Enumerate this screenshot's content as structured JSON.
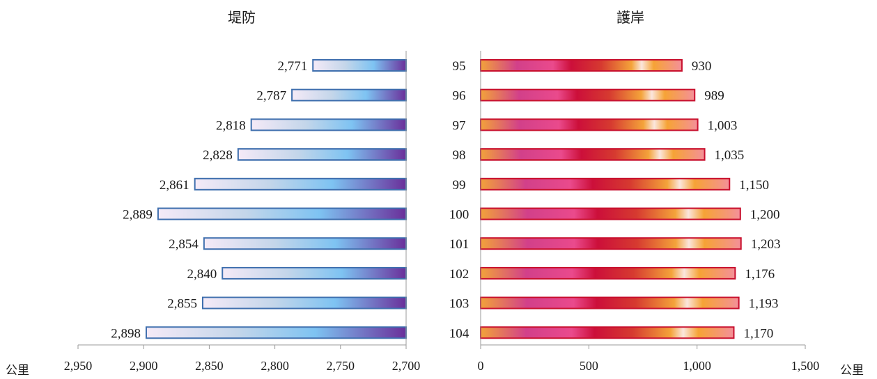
{
  "chart_data": [
    {
      "type": "bar",
      "orientation": "horizontal",
      "axis_direction": "reversed",
      "title": "堤防",
      "unit": "公里",
      "categories": [
        "95",
        "96",
        "97",
        "98",
        "99",
        "100",
        "101",
        "102",
        "103",
        "104"
      ],
      "values": [
        2771,
        2787,
        2818,
        2828,
        2861,
        2889,
        2854,
        2840,
        2855,
        2898
      ],
      "value_labels": [
        "2,771",
        "2,787",
        "2,818",
        "2,828",
        "2,861",
        "2,889",
        "2,854",
        "2,840",
        "2,855",
        "2,898"
      ],
      "xlim": [
        2700,
        2950
      ],
      "ticks": [
        2950,
        2900,
        2850,
        2800,
        2750,
        2700
      ],
      "tick_labels": [
        "2,950",
        "2,900",
        "2,850",
        "2,800",
        "2,750",
        "2,700"
      ],
      "grid": false,
      "colors": {
        "fill_start": "#f5eaf7",
        "fill_mid": "#7ec3f2",
        "fill_end": "#6a2f9a",
        "stroke": "#3f6fae"
      }
    },
    {
      "type": "bar",
      "orientation": "horizontal",
      "title": "護岸",
      "unit": "公里",
      "categories": [
        "95",
        "96",
        "97",
        "98",
        "99",
        "100",
        "101",
        "102",
        "103",
        "104"
      ],
      "values": [
        930,
        989,
        1003,
        1035,
        1150,
        1200,
        1203,
        1176,
        1193,
        1170
      ],
      "value_labels": [
        "930",
        "989",
        "1,003",
        "1,035",
        "1,150",
        "1,200",
        "1,203",
        "1,176",
        "1,193",
        "1,170"
      ],
      "xlim": [
        0,
        1500
      ],
      "ticks": [
        0,
        500,
        1000,
        1500
      ],
      "tick_labels": [
        "0",
        "500",
        "1,000",
        "1,500"
      ],
      "grid": false,
      "colors": {
        "stroke": "#c8102e",
        "gradient": [
          "#f2a23a",
          "#d2408a",
          "#ea4a8c",
          "#cc0f3a",
          "#d63a30",
          "#f4a33a",
          "#fbe6dd",
          "#f6a335",
          "#f4909a"
        ]
      }
    }
  ]
}
